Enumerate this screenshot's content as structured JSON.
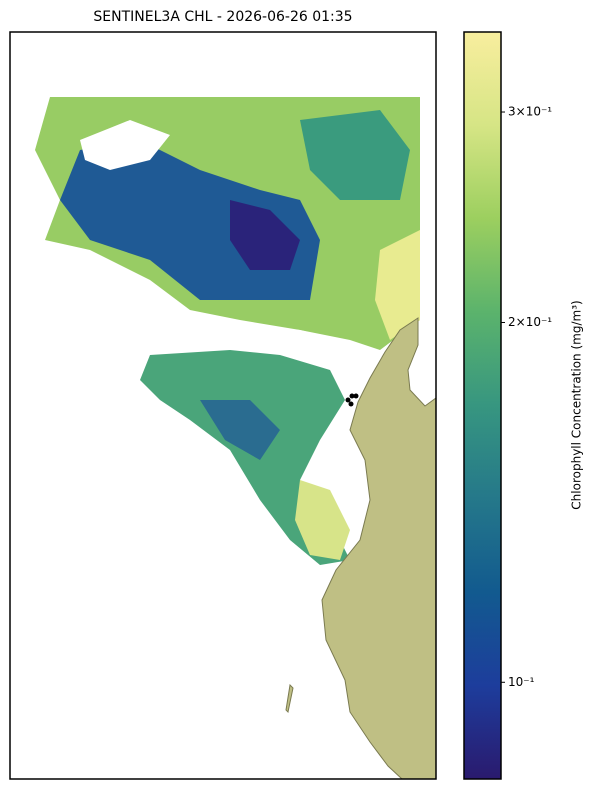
{
  "chart_data": {
    "type": "map",
    "title": "SENTINEL3A CHL - 2026-06-26 01:35",
    "colorbar_label": "Chlorophyll Concentration (mg/m³)",
    "colorbar_scale": "log",
    "clim": [
      0.083,
      0.35
    ],
    "colorbar_ticks": [
      {
        "value": 0.1,
        "label": "10⁻¹"
      },
      {
        "value": 0.2,
        "label": "2×10⁻¹"
      },
      {
        "value": 0.3,
        "label": "3×10⁻¹"
      }
    ],
    "colormap": [
      "#2a1a6e",
      "#1d3d9c",
      "#125a8f",
      "#25788a",
      "#379680",
      "#5bb36c",
      "#9ccf5f",
      "#d6e585",
      "#f8ee9e"
    ]
  }
}
